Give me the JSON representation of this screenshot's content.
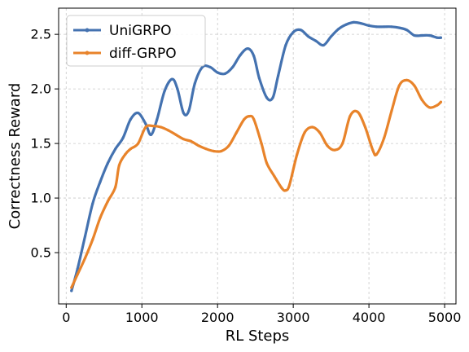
{
  "chart_data": {
    "type": "line",
    "title": "",
    "xlabel": "RL Steps",
    "ylabel": "Correctness Reward",
    "xlim": [
      -100,
      5150
    ],
    "ylim": [
      0.03,
      2.74
    ],
    "xticks": [
      0,
      1000,
      2000,
      3000,
      4000,
      5000
    ],
    "yticks": [
      0.5,
      1.0,
      1.5,
      2.0,
      2.5
    ],
    "xtick_labels": [
      "0",
      "1000",
      "2000",
      "3000",
      "4000",
      "5000"
    ],
    "ytick_labels": [
      "0.5",
      "1.0",
      "1.5",
      "2.0",
      "2.5"
    ],
    "grid": true,
    "legend_position": "top-left",
    "series": [
      {
        "name": "UniGRPO",
        "color": "#4472b0",
        "points": [
          [
            70,
            0.15
          ],
          [
            150,
            0.35
          ],
          [
            250,
            0.65
          ],
          [
            350,
            0.95
          ],
          [
            450,
            1.15
          ],
          [
            550,
            1.32
          ],
          [
            650,
            1.45
          ],
          [
            750,
            1.55
          ],
          [
            850,
            1.72
          ],
          [
            950,
            1.78
          ],
          [
            1050,
            1.68
          ],
          [
            1120,
            1.58
          ],
          [
            1200,
            1.72
          ],
          [
            1300,
            1.98
          ],
          [
            1400,
            2.09
          ],
          [
            1470,
            2.0
          ],
          [
            1550,
            1.78
          ],
          [
            1620,
            1.8
          ],
          [
            1700,
            2.05
          ],
          [
            1800,
            2.2
          ],
          [
            1900,
            2.2
          ],
          [
            2000,
            2.15
          ],
          [
            2100,
            2.14
          ],
          [
            2200,
            2.2
          ],
          [
            2300,
            2.31
          ],
          [
            2400,
            2.37
          ],
          [
            2480,
            2.3
          ],
          [
            2550,
            2.1
          ],
          [
            2650,
            1.92
          ],
          [
            2730,
            1.92
          ],
          [
            2800,
            2.12
          ],
          [
            2900,
            2.4
          ],
          [
            3000,
            2.52
          ],
          [
            3100,
            2.54
          ],
          [
            3200,
            2.48
          ],
          [
            3300,
            2.44
          ],
          [
            3400,
            2.4
          ],
          [
            3500,
            2.48
          ],
          [
            3600,
            2.55
          ],
          [
            3700,
            2.59
          ],
          [
            3800,
            2.61
          ],
          [
            3900,
            2.6
          ],
          [
            4000,
            2.58
          ],
          [
            4100,
            2.57
          ],
          [
            4200,
            2.57
          ],
          [
            4300,
            2.57
          ],
          [
            4400,
            2.56
          ],
          [
            4500,
            2.54
          ],
          [
            4600,
            2.49
          ],
          [
            4700,
            2.49
          ],
          [
            4800,
            2.49
          ],
          [
            4900,
            2.47
          ],
          [
            4950,
            2.47
          ]
        ]
      },
      {
        "name": "diff-GRPO",
        "color": "#e8832a",
        "points": [
          [
            70,
            0.18
          ],
          [
            150,
            0.3
          ],
          [
            250,
            0.45
          ],
          [
            350,
            0.62
          ],
          [
            450,
            0.82
          ],
          [
            550,
            0.97
          ],
          [
            650,
            1.1
          ],
          [
            700,
            1.3
          ],
          [
            780,
            1.4
          ],
          [
            850,
            1.45
          ],
          [
            950,
            1.5
          ],
          [
            1050,
            1.65
          ],
          [
            1150,
            1.66
          ],
          [
            1250,
            1.65
          ],
          [
            1350,
            1.62
          ],
          [
            1450,
            1.58
          ],
          [
            1550,
            1.54
          ],
          [
            1650,
            1.52
          ],
          [
            1750,
            1.48
          ],
          [
            1850,
            1.45
          ],
          [
            1950,
            1.43
          ],
          [
            2050,
            1.43
          ],
          [
            2150,
            1.48
          ],
          [
            2250,
            1.6
          ],
          [
            2350,
            1.72
          ],
          [
            2420,
            1.75
          ],
          [
            2480,
            1.72
          ],
          [
            2580,
            1.5
          ],
          [
            2650,
            1.32
          ],
          [
            2750,
            1.2
          ],
          [
            2850,
            1.09
          ],
          [
            2900,
            1.07
          ],
          [
            2950,
            1.12
          ],
          [
            3050,
            1.4
          ],
          [
            3150,
            1.6
          ],
          [
            3250,
            1.65
          ],
          [
            3350,
            1.6
          ],
          [
            3450,
            1.48
          ],
          [
            3550,
            1.44
          ],
          [
            3650,
            1.5
          ],
          [
            3750,
            1.75
          ],
          [
            3850,
            1.79
          ],
          [
            3950,
            1.65
          ],
          [
            4050,
            1.44
          ],
          [
            4100,
            1.4
          ],
          [
            4200,
            1.55
          ],
          [
            4300,
            1.8
          ],
          [
            4400,
            2.03
          ],
          [
            4500,
            2.08
          ],
          [
            4600,
            2.03
          ],
          [
            4700,
            1.9
          ],
          [
            4800,
            1.83
          ],
          [
            4900,
            1.85
          ],
          [
            4950,
            1.88
          ]
        ]
      }
    ]
  }
}
